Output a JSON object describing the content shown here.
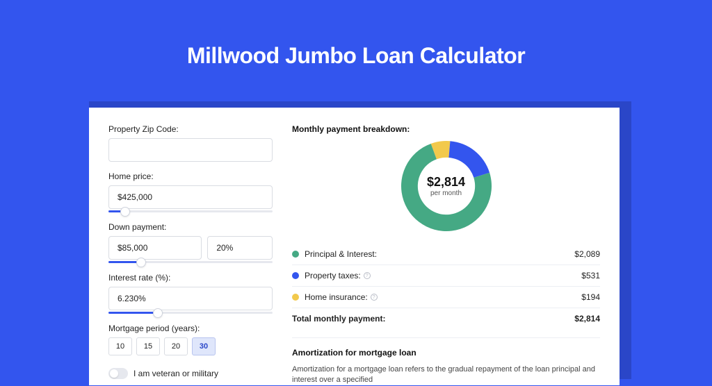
{
  "page": {
    "title": "Millwood Jumbo Loan Calculator",
    "background_color": "#3355ee",
    "shadow_color": "#2a46c8"
  },
  "form": {
    "zip": {
      "label": "Property Zip Code:",
      "value": ""
    },
    "home_price": {
      "label": "Home price:",
      "value": "$425,000",
      "slider_pct": 10
    },
    "down_payment": {
      "label": "Down payment:",
      "amount": "$85,000",
      "percent": "20%",
      "slider_pct": 20
    },
    "interest_rate": {
      "label": "Interest rate (%):",
      "value": "6.230%",
      "slider_pct": 30
    },
    "mortgage_period": {
      "label": "Mortgage period (years):",
      "options": [
        "10",
        "15",
        "20",
        "30"
      ],
      "selected": "30"
    },
    "veteran": {
      "label": "I am veteran or military",
      "checked": false
    }
  },
  "breakdown": {
    "title": "Monthly payment breakdown:",
    "center_value": "$2,814",
    "center_sub": "per month",
    "donut": {
      "type": "donut",
      "outer_radius": 60,
      "inner_radius": 38,
      "slices": [
        {
          "label": "Principal & Interest:",
          "value": "$2,089",
          "pct": 74.2,
          "color": "#45a984"
        },
        {
          "label": "Property taxes:",
          "value": "$531",
          "pct": 18.9,
          "color": "#3355ee",
          "has_info": true
        },
        {
          "label": "Home insurance:",
          "value": "$194",
          "pct": 6.9,
          "color": "#f2c94c",
          "has_info": true
        }
      ],
      "background": "#ffffff"
    },
    "total": {
      "label": "Total monthly payment:",
      "value": "$2,814"
    }
  },
  "amortization": {
    "title": "Amortization for mortgage loan",
    "text": "Amortization for a mortgage loan refers to the gradual repayment of the loan principal and interest over a specified"
  }
}
